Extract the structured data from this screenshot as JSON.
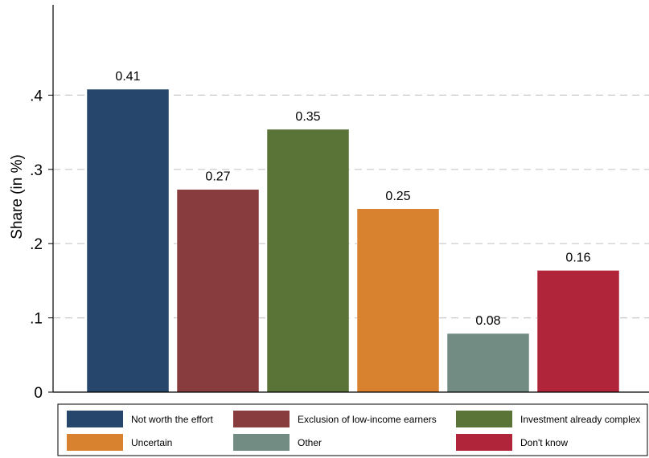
{
  "chart_data": {
    "type": "bar",
    "title": "",
    "xlabel": "",
    "ylabel": "Share (in %)",
    "ylim": [
      0,
      0.5
    ],
    "yticks": [
      {
        "value": 0,
        "label": "0"
      },
      {
        "value": 0.1,
        "label": ".1"
      },
      {
        "value": 0.2,
        "label": ".2"
      },
      {
        "value": 0.3,
        "label": ".3"
      },
      {
        "value": 0.4,
        "label": ".4"
      }
    ],
    "grid": true,
    "legend_position": "bottom",
    "series": [
      {
        "name": "Not worth the effort",
        "value": 0.408,
        "label": "0.41",
        "color": "#26476b"
      },
      {
        "name": "Exclusion of low-income earners",
        "value": 0.273,
        "label": "0.27",
        "color": "#893c3e"
      },
      {
        "name": "Investment already complex",
        "value": 0.354,
        "label": "0.35",
        "color": "#5a7337"
      },
      {
        "name": "Uncertain",
        "value": 0.247,
        "label": "0.25",
        "color": "#d8812f"
      },
      {
        "name": "Other",
        "value": 0.079,
        "label": "0.08",
        "color": "#728c83"
      },
      {
        "name": "Don't know",
        "value": 0.164,
        "label": "0.16",
        "color": "#b0253a"
      }
    ]
  }
}
